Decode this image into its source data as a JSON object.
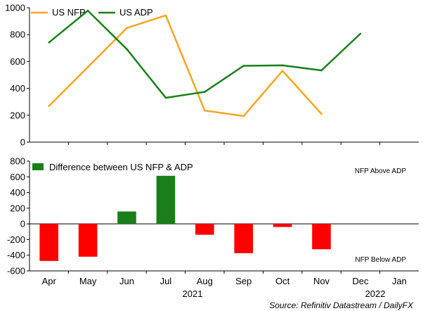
{
  "chart_data": [
    {
      "type": "line",
      "categories": [
        "Apr",
        "May",
        "Jun",
        "Jul",
        "Aug",
        "Sep",
        "Oct",
        "Nov",
        "Dec",
        "Jan"
      ],
      "ylim": [
        0,
        1000
      ],
      "yticks": [
        0,
        200,
        400,
        600,
        800,
        1000
      ],
      "series": [
        {
          "name": "US NFP",
          "color": "#f5a623",
          "values": [
            269,
            559,
            850,
            943,
            235,
            194,
            531,
            210,
            null,
            null
          ]
        },
        {
          "name": "US ADP",
          "color": "#1a7f1a",
          "values": [
            742,
            978,
            692,
            330,
            374,
            568,
            571,
            534,
            807,
            null
          ]
        }
      ],
      "legend": [
        "US NFP",
        "US ADP"
      ],
      "legend_position": "top-left"
    },
    {
      "type": "bar",
      "categories": [
        "Apr",
        "May",
        "Jun",
        "Jul",
        "Aug",
        "Sep",
        "Oct",
        "Nov",
        "Dec",
        "Jan"
      ],
      "ylim": [
        -600,
        800
      ],
      "yticks": [
        -600,
        -400,
        -200,
        0,
        200,
        400,
        600,
        800
      ],
      "series": [
        {
          "name": "Difference between US NFP & ADP",
          "values": [
            -473,
            -419,
            158,
            613,
            -139,
            -374,
            -40,
            -324,
            null,
            null
          ]
        }
      ],
      "positive_color": "#1a7f1a",
      "negative_color": "#ff0000",
      "legend_position": "top-left",
      "annotations": [
        "NFP Above ADP",
        "NFP Below ADP"
      ]
    }
  ],
  "x_years": [
    "2021",
    "2022"
  ],
  "source": "Source: Refinitiv Datastream / DailyFX"
}
